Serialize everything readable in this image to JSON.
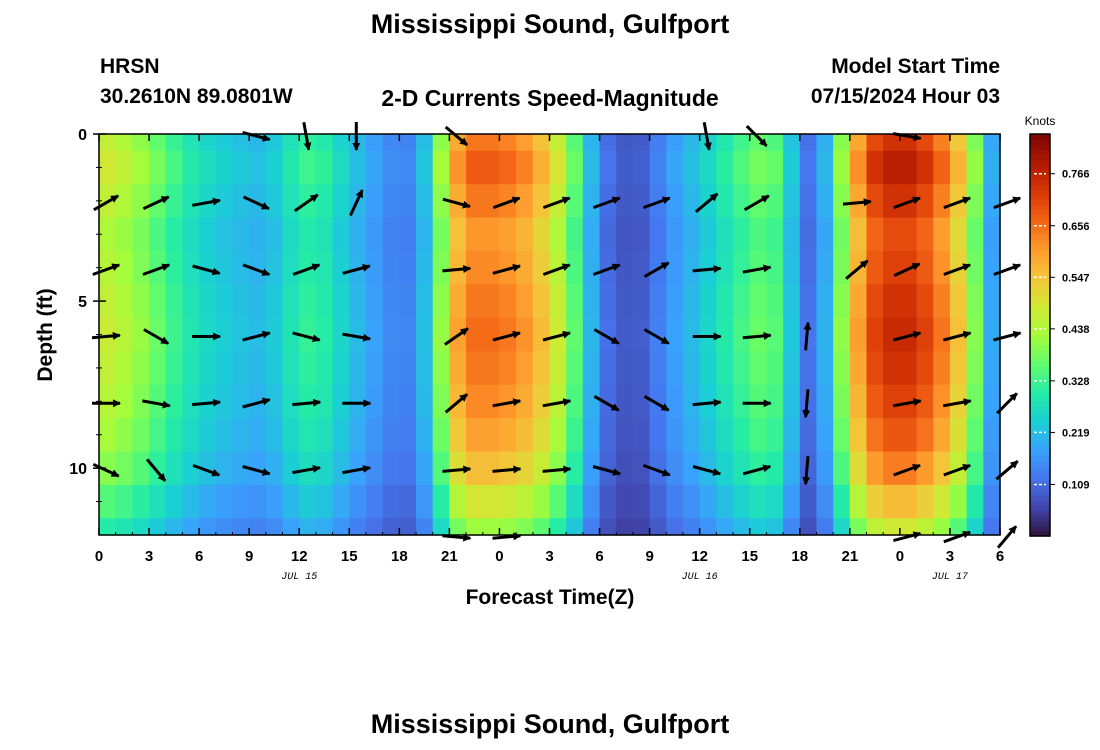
{
  "header": {
    "title": "Mississippi Sound, Gulfport",
    "station": "HRSN",
    "coordinates": "30.2610N  89.0801W",
    "plot_title": "2-D Currents Speed-Magnitude",
    "model_start_label": "Model Start Time",
    "model_start_value": "07/15/2024 Hour 03"
  },
  "footer": {
    "title": "Mississippi Sound, Gulfport"
  },
  "chart_data": {
    "type": "heatmap",
    "title": "2-D Currents Speed-Magnitude",
    "xlabel": "Forecast Time(Z)",
    "ylabel": "Depth (ft)",
    "x_tick_labels": [
      "0",
      "3",
      "6",
      "9",
      "12",
      "15",
      "18",
      "21",
      "0",
      "3",
      "6",
      "9",
      "12",
      "15",
      "18",
      "21",
      "0",
      "3",
      "6"
    ],
    "x_hours": [
      0,
      3,
      6,
      9,
      12,
      15,
      18,
      21,
      24,
      27,
      30,
      33,
      36,
      39,
      42,
      45,
      48,
      51,
      54
    ],
    "date_labels": [
      {
        "hour": 12,
        "label": "JUL 15"
      },
      {
        "hour": 36,
        "label": "JUL 16"
      },
      {
        "hour": 51,
        "label": "JUL 17"
      }
    ],
    "xlim": [
      0,
      54
    ],
    "ylim": [
      0,
      12
    ],
    "y_inverted": true,
    "y_tick_labels": [
      "0",
      "5",
      "10"
    ],
    "y_ticks": [
      0,
      5,
      10
    ],
    "colorbar": {
      "label": "Knots",
      "ticks": [
        "0.109",
        "0.219",
        "0.328",
        "0.438",
        "0.547",
        "0.656",
        "0.766"
      ],
      "tick_values": [
        0.109,
        0.219,
        0.328,
        0.438,
        0.547,
        0.656,
        0.766
      ],
      "range": [
        0.0,
        0.85
      ],
      "colors": [
        "#30123b",
        "#4145ab",
        "#4675ed",
        "#39a2fc",
        "#1bcfd4",
        "#24eca6",
        "#61fc6c",
        "#a4fc3b",
        "#d1e834",
        "#f3c63a",
        "#fe9b2d",
        "#f36315",
        "#d93806",
        "#b11901",
        "#7a0402"
      ]
    },
    "time_keypoints_hours": [
      0,
      2,
      4,
      6,
      8,
      10,
      12,
      13,
      15,
      17,
      18,
      19,
      20,
      21,
      22,
      24,
      26,
      28,
      30,
      31,
      32,
      33,
      34,
      36,
      38,
      40,
      41,
      42,
      43,
      44,
      46,
      48,
      50,
      52,
      53,
      54
    ],
    "speed_keypoints_knots": [
      0.5,
      0.45,
      0.36,
      0.28,
      0.24,
      0.22,
      0.32,
      0.34,
      0.24,
      0.17,
      0.14,
      0.16,
      0.3,
      0.55,
      0.68,
      0.68,
      0.62,
      0.45,
      0.14,
      0.1,
      0.08,
      0.11,
      0.17,
      0.24,
      0.33,
      0.4,
      0.33,
      0.15,
      0.1,
      0.32,
      0.72,
      0.8,
      0.72,
      0.52,
      0.3,
      0.1
    ],
    "depth_rows_ft": [
      0,
      1,
      2,
      3,
      4,
      5,
      6,
      7,
      8,
      9,
      10,
      11,
      12
    ],
    "depth_factors": [
      0.95,
      1.0,
      0.95,
      0.9,
      0.92,
      0.95,
      0.97,
      0.95,
      0.92,
      0.88,
      0.82,
      0.72,
      0.62
    ],
    "vector_columns_hours": [
      0,
      3,
      6,
      9,
      12,
      15,
      18,
      21,
      24,
      27,
      30,
      33,
      36,
      39,
      42,
      45,
      48,
      51,
      54
    ],
    "vector_rows_ft": [
      0,
      2,
      4,
      6,
      8,
      10,
      12
    ],
    "vector_directions_deg": [
      [
        null,
        null,
        null,
        -15,
        -80,
        -90,
        null,
        -40,
        null,
        null,
        null,
        null,
        -80,
        -45,
        null,
        null,
        -10,
        null,
        null
      ],
      [
        30,
        25,
        10,
        -25,
        35,
        65,
        null,
        -15,
        20,
        20,
        20,
        20,
        40,
        30,
        null,
        5,
        20,
        20,
        20
      ],
      [
        20,
        20,
        -15,
        -20,
        20,
        15,
        null,
        5,
        15,
        20,
        20,
        30,
        5,
        10,
        null,
        40,
        25,
        20,
        20
      ],
      [
        5,
        -30,
        0,
        15,
        -15,
        -10,
        null,
        35,
        15,
        15,
        -30,
        -30,
        0,
        5,
        85,
        null,
        15,
        15,
        15
      ],
      [
        0,
        -10,
        5,
        15,
        5,
        0,
        null,
        40,
        10,
        10,
        -30,
        -30,
        5,
        0,
        -95,
        null,
        10,
        10,
        45
      ],
      [
        -25,
        -50,
        -20,
        -15,
        10,
        10,
        null,
        5,
        5,
        5,
        -15,
        -20,
        -15,
        15,
        -95,
        null,
        20,
        20,
        40
      ],
      [
        null,
        null,
        null,
        null,
        null,
        null,
        null,
        -5,
        5,
        null,
        null,
        null,
        null,
        null,
        null,
        null,
        15,
        20,
        50
      ]
    ]
  }
}
